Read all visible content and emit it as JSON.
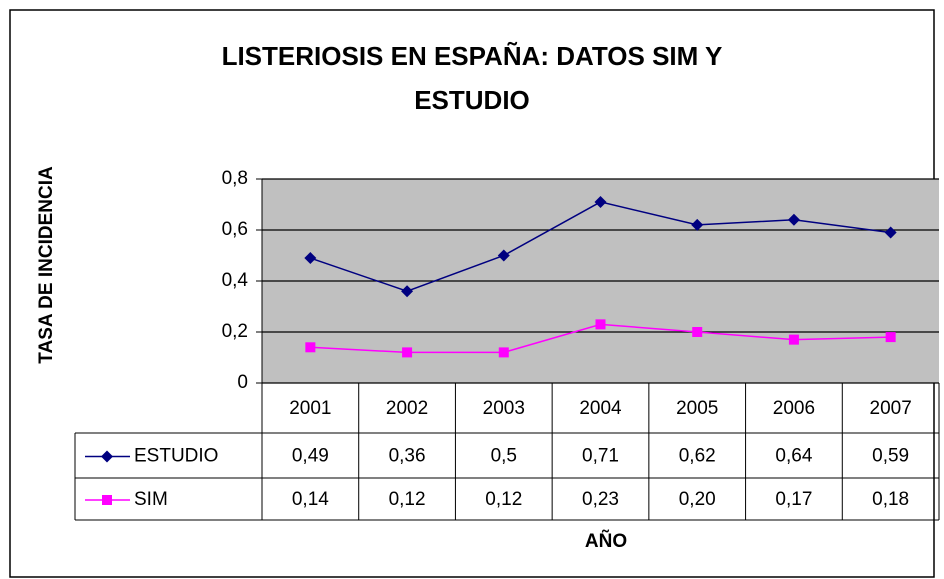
{
  "chart_data": {
    "type": "line",
    "title": "LISTERIOSIS EN ESPAÑA: DATOS SIM Y ESTUDIO",
    "x_label": "AÑO",
    "y_label": "TASA DE INCIDENCIA",
    "categories": [
      "2001",
      "2002",
      "2003",
      "2004",
      "2005",
      "2006",
      "2007"
    ],
    "series": [
      {
        "name": "ESTUDIO",
        "color": "#000080",
        "marker": "diamond",
        "values": [
          0.49,
          0.36,
          0.5,
          0.71,
          0.62,
          0.64,
          0.59
        ],
        "value_labels": [
          "0,49",
          "0,36",
          "0,5",
          "0,71",
          "0,62",
          "0,64",
          "0,59"
        ]
      },
      {
        "name": "SIM",
        "color": "#ff00ff",
        "marker": "square",
        "values": [
          0.14,
          0.12,
          0.12,
          0.23,
          0.2,
          0.17,
          0.18
        ],
        "value_labels": [
          "0,14",
          "0,12",
          "0,12",
          "0,23",
          "0,20",
          "0,17",
          "0,18"
        ]
      }
    ],
    "ylim": [
      0,
      0.8
    ],
    "yticks": [
      0,
      {
        "value": 0.2,
        "label": "0,2"
      },
      {
        "value": 0.4,
        "label": "0,4"
      },
      {
        "value": 0.6,
        "label": "0,6"
      },
      {
        "value": 0.8,
        "label": "0,8"
      }
    ],
    "grid": true,
    "plot_background": "#c0c0c0"
  }
}
